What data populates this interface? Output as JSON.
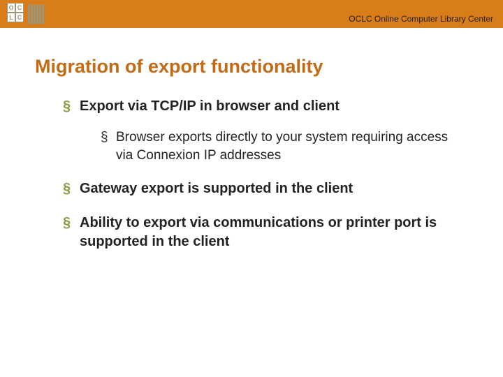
{
  "colors": {
    "header_bg": "#d97c1a",
    "title": "#c26a14",
    "bullet_top": "#8a9a3f",
    "bullet_sub": "#333333",
    "text": "#222222",
    "logo": "#9a9478"
  },
  "header": {
    "org_text": "OCLC Online Computer Library Center"
  },
  "slide": {
    "title": "Migration of export functionality",
    "bullets": [
      {
        "text": "Export via TCP/IP in browser and client",
        "children": [
          {
            "text": "Browser exports directly to your system requiring access via Connexion IP addresses"
          }
        ]
      },
      {
        "text": "Gateway export is supported in the client"
      },
      {
        "text": "Ability to export via communications or printer port is supported in the client"
      }
    ]
  }
}
